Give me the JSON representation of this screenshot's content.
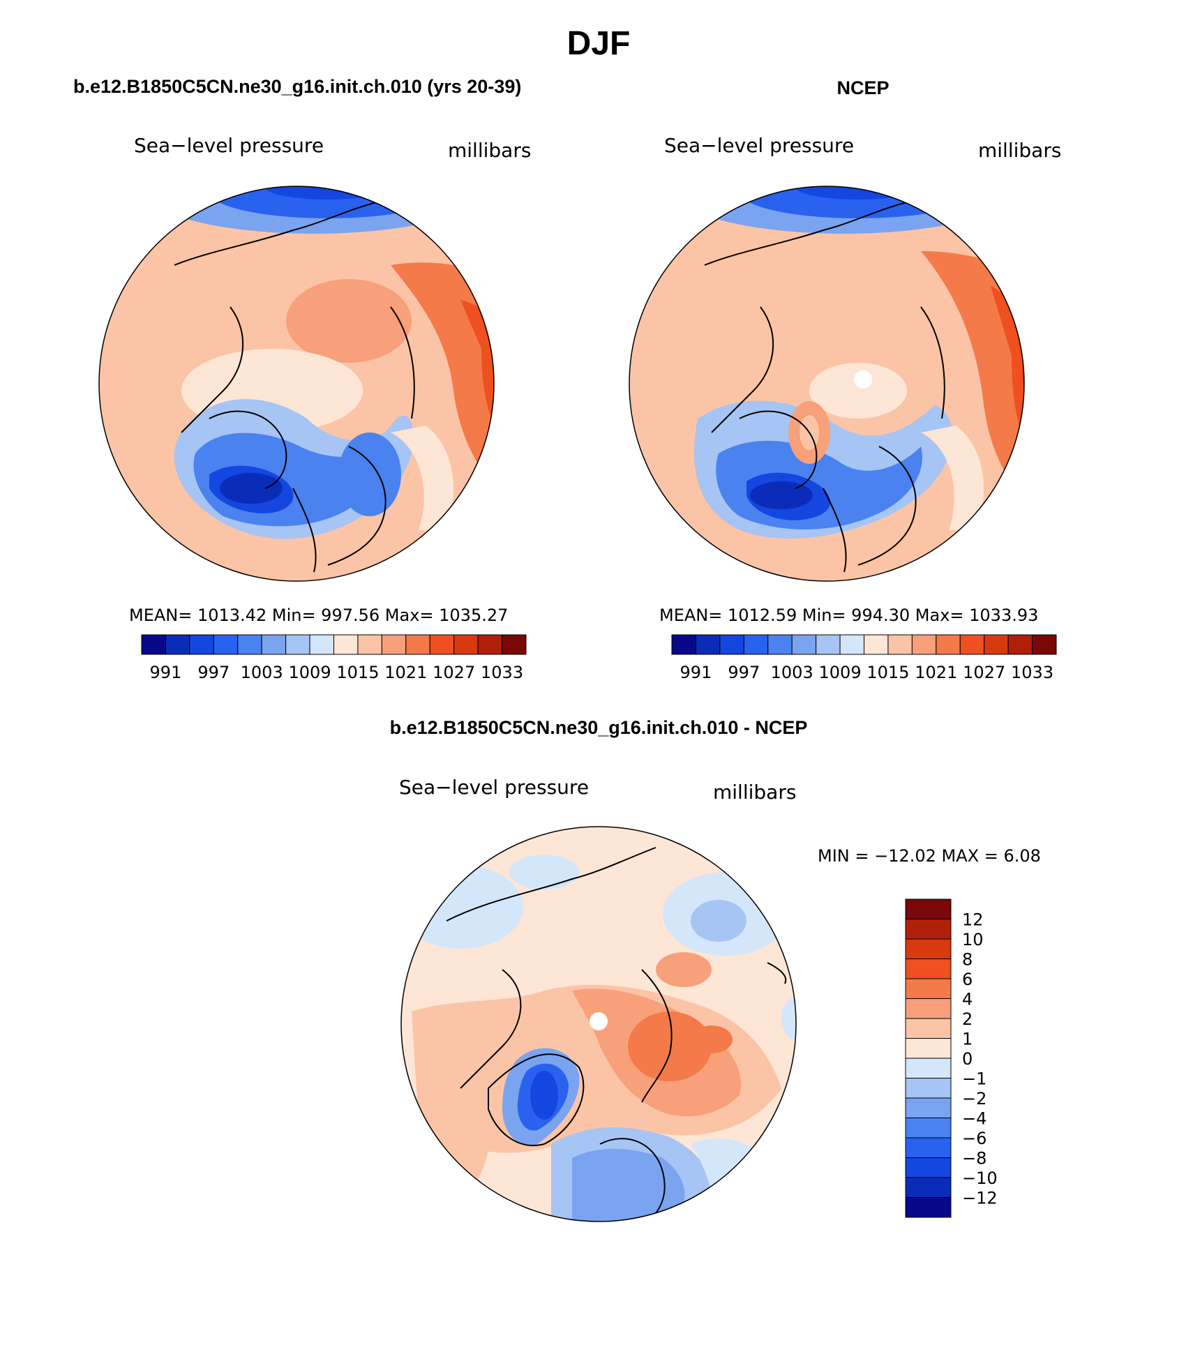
{
  "figure": {
    "season": "DJF",
    "upper_left_title": "b.e12.B1850C5CN.ne30_g16.init.ch.010 (yrs 20-39)",
    "upper_right_title": "NCEP",
    "lower_title": "b.e12.B1850C5CN.ne30_g16.init.ch.010 - NCEP"
  },
  "panels": {
    "model": {
      "variable": "Sea−level pressure",
      "units": "millibars",
      "stats": "MEAN=  1013.42    Min=  997.56    Max=  1035.27"
    },
    "obs": {
      "variable": "Sea−level pressure",
      "units": "millibars",
      "stats": "MEAN=  1012.59    Min=  994.30    Max=  1033.93"
    },
    "diff": {
      "variable": "Sea−level pressure",
      "units": "millibars",
      "stats": "MIN  =  −12.02  MAX  =     6.08"
    }
  },
  "colorbars": {
    "abs": {
      "colors": [
        "#08088a",
        "#0a2cb8",
        "#1446e0",
        "#2a62f0",
        "#4a82f0",
        "#7aa4f0",
        "#a6c4f4",
        "#d4e6fa",
        "#fde6d6",
        "#fcc4a6",
        "#f8a07a",
        "#f47a4a",
        "#ee5020",
        "#d83a10",
        "#b02008",
        "#7a0808"
      ],
      "labels": [
        "991",
        "997",
        "1003",
        "1009",
        "1015",
        "1021",
        "1027",
        "1033"
      ]
    },
    "diff": {
      "colors_top_to_bottom": [
        "#7a0808",
        "#b02008",
        "#d83a10",
        "#ee5020",
        "#f47a4a",
        "#f8a07a",
        "#fcc4a6",
        "#fde6d6",
        "#d4e6fa",
        "#a6c4f4",
        "#7aa4f0",
        "#4a82f0",
        "#2a62f0",
        "#1446e0",
        "#0a2cb8",
        "#08088a"
      ],
      "labels": [
        "12",
        "10",
        "8",
        "6",
        "4",
        "2",
        "1",
        "0",
        "−1",
        "−2",
        "−4",
        "−6",
        "−8",
        "−10",
        "−12"
      ]
    }
  }
}
